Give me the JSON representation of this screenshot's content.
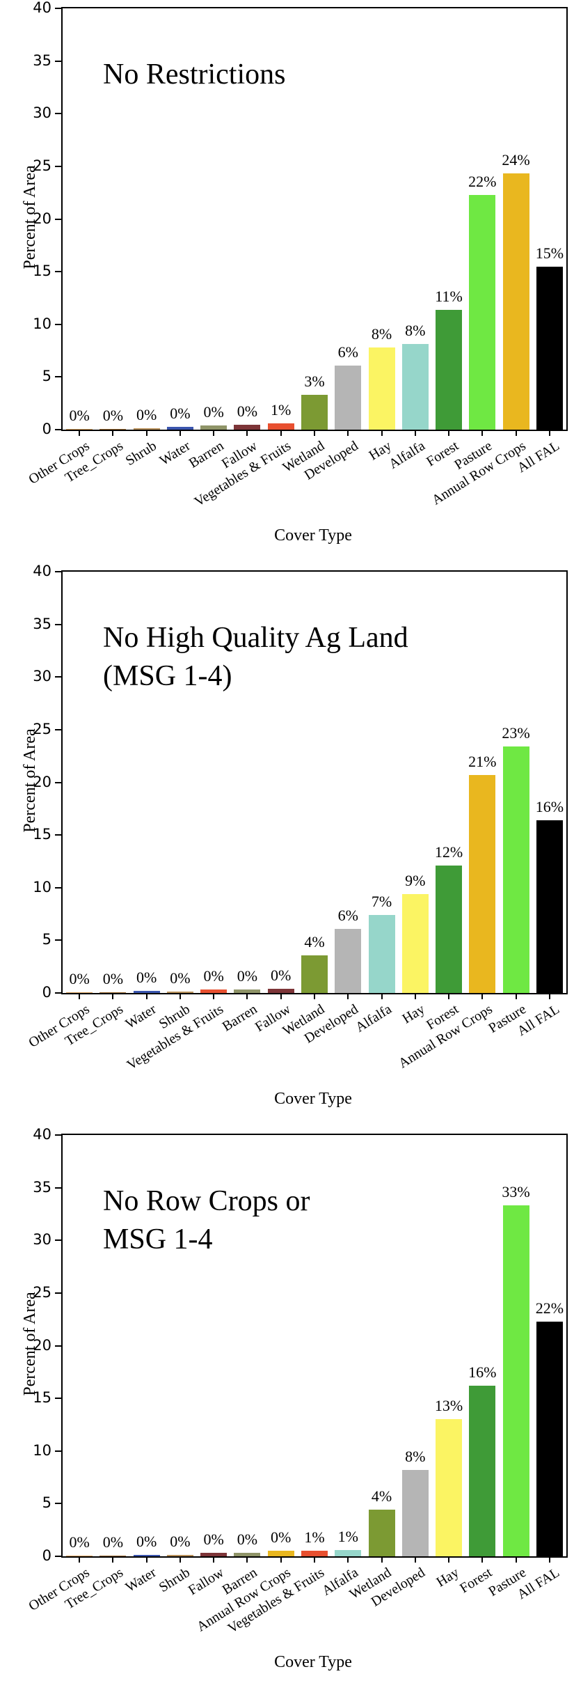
{
  "figure_title": "",
  "category_colors": {
    "Other Crops": "#d9a05b",
    "Tree_Crops": "#9c6b30",
    "Shrub": "#b9915a",
    "Water": "#3a55ae",
    "Barren": "#8f9468",
    "Fallow": "#7d3538",
    "Vegetables & Fruits": "#e85030",
    "Wetland": "#7c9a33",
    "Developed": "#b5b5b5",
    "Hay": "#fbf463",
    "Alfalfa": "#96d6ca",
    "Forest": "#3f9b37",
    "Pasture": "#6fe843",
    "Annual Row Crops": "#e9b71f",
    "All FAL": "#000000"
  },
  "chart_data": [
    {
      "type": "bar",
      "title": "No Restrictions",
      "xlabel": "Cover Type",
      "ylabel": "Percent of Area",
      "ylim": [
        0,
        40
      ],
      "yticks": [
        0,
        5,
        10,
        15,
        20,
        25,
        30,
        35,
        40
      ],
      "grid": false,
      "legend": "none",
      "categories": [
        "Other Crops",
        "Tree_Crops",
        "Shrub",
        "Water",
        "Barren",
        "Fallow",
        "Vegetables & Fruits",
        "Wetland",
        "Developed",
        "Hay",
        "Alfalfa",
        "Forest",
        "Pasture",
        "Annual Row Crops",
        "All FAL"
      ],
      "values": [
        0.03,
        0.06,
        0.12,
        0.25,
        0.4,
        0.45,
        0.6,
        3.3,
        6.1,
        7.8,
        8.1,
        11.4,
        22.3,
        24.3,
        15.5
      ],
      "labels": [
        "0%",
        "0%",
        "0%",
        "0%",
        "0%",
        "0%",
        "1%",
        "3%",
        "6%",
        "8%",
        "8%",
        "11%",
        "22%",
        "24%",
        "15%"
      ]
    },
    {
      "type": "bar",
      "title": "No High Quality Ag Land\n(MSG 1-4)",
      "xlabel": "Cover Type",
      "ylabel": "Percent of Area",
      "ylim": [
        0,
        40
      ],
      "yticks": [
        0,
        5,
        10,
        15,
        20,
        25,
        30,
        35,
        40
      ],
      "grid": false,
      "legend": "none",
      "categories": [
        "Other Crops",
        "Tree_Crops",
        "Water",
        "Shrub",
        "Vegetables & Fruits",
        "Barren",
        "Fallow",
        "Wetland",
        "Developed",
        "Alfalfa",
        "Hay",
        "Forest",
        "Annual Row Crops",
        "Pasture",
        "All FAL"
      ],
      "values": [
        0.03,
        0.06,
        0.2,
        0.1,
        0.35,
        0.3,
        0.4,
        3.6,
        6.1,
        7.4,
        9.4,
        12.1,
        20.7,
        23.4,
        16.4
      ],
      "labels": [
        "0%",
        "0%",
        "0%",
        "0%",
        "0%",
        "0%",
        "0%",
        "4%",
        "6%",
        "7%",
        "9%",
        "12%",
        "21%",
        "23%",
        "16%"
      ]
    },
    {
      "type": "bar",
      "title": "No Row Crops or\nMSG 1-4",
      "xlabel": "Cover Type",
      "ylabel": "Percent of Area",
      "ylim": [
        0,
        40
      ],
      "yticks": [
        0,
        5,
        10,
        15,
        20,
        25,
        30,
        35,
        40
      ],
      "grid": false,
      "legend": "none",
      "categories": [
        "Other Crops",
        "Tree_Crops",
        "Water",
        "Shrub",
        "Fallow",
        "Barren",
        "Annual Row Crops",
        "Vegetables & Fruits",
        "Alfalfa",
        "Wetland",
        "Developed",
        "Hay",
        "Forest",
        "Pasture",
        "All FAL"
      ],
      "values": [
        0.03,
        0.06,
        0.15,
        0.1,
        0.35,
        0.35,
        0.5,
        0.55,
        0.6,
        4.4,
        8.2,
        13.0,
        16.2,
        33.3,
        22.3
      ],
      "labels": [
        "0%",
        "0%",
        "0%",
        "0%",
        "0%",
        "0%",
        "0%",
        "1%",
        "1%",
        "4%",
        "8%",
        "13%",
        "16%",
        "33%",
        "22%"
      ]
    }
  ]
}
